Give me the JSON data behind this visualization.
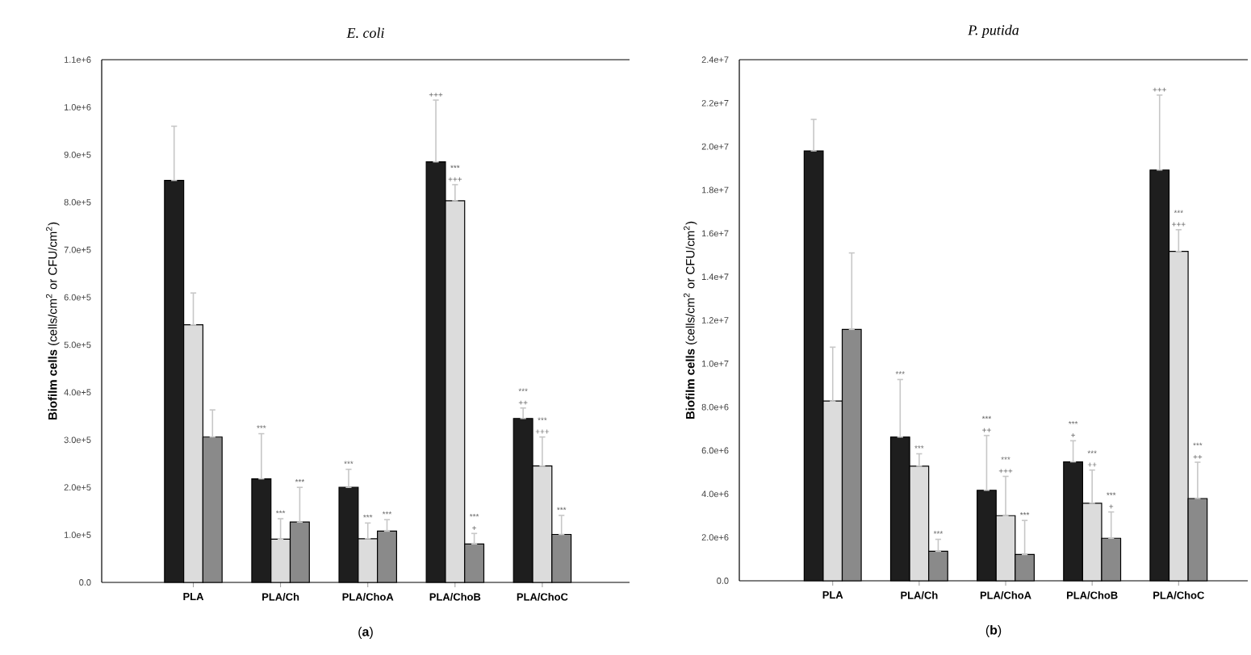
{
  "chart_data": [
    {
      "type": "bar",
      "title": "E. coli",
      "ylabel": "**Biofilm cells** (cells/cm$^{2}$ or CFU/cm$^{2}$)",
      "categories": [
        "PLA",
        "PLA/Ch",
        "PLA/ChoA",
        "PLA/ChoB",
        "PLA/ChoC"
      ],
      "series": [
        {
          "color": "#1e1e1e",
          "values": [
            846000,
            218000,
            200000,
            885000,
            345000
          ],
          "errors": [
            [
              846000,
              960000
            ],
            [
              218000,
              313000
            ],
            [
              200000,
              238000
            ],
            [
              885000,
              1015000
            ],
            [
              345000,
              367000
            ]
          ]
        },
        {
          "color": "#dcdcdc",
          "values": [
            542000,
            91000,
            92000,
            803000,
            245000
          ],
          "errors": [
            [
              542000,
              609000
            ],
            [
              91000,
              134000
            ],
            [
              92000,
              125000
            ],
            [
              803000,
              837000
            ],
            [
              245000,
              306000
            ]
          ]
        },
        {
          "color": "#8a8a8a",
          "values": [
            306000,
            127000,
            108000,
            81000,
            101000
          ],
          "errors": [
            [
              306000,
              363000
            ],
            [
              127000,
              200000
            ],
            [
              108000,
              132000
            ],
            [
              81000,
              103000
            ],
            [
              101000,
              141000
            ]
          ]
        }
      ],
      "ylim": [
        0,
        1100000
      ],
      "yticks": [
        {
          "value": 0,
          "label": "0.0"
        },
        {
          "value": 100000,
          "label": "1.0e+5"
        },
        {
          "value": 200000,
          "label": "2.0e+5"
        },
        {
          "value": 300000,
          "label": "3.0e+5"
        },
        {
          "value": 400000,
          "label": "4.0e+5"
        },
        {
          "value": 500000,
          "label": "5.0e+5"
        },
        {
          "value": 600000,
          "label": "6.0e+5"
        },
        {
          "value": 700000,
          "label": "7.0e+5"
        },
        {
          "value": 800000,
          "label": "8.0e+5"
        },
        {
          "value": 900000,
          "label": "9.0e+5"
        },
        {
          "value": 1000000,
          "label": "1.0e+6"
        },
        {
          "value": 1100000,
          "label": "1.1e+6"
        }
      ],
      "annotations": [
        "***",
        "***",
        "***",
        "***",
        "***",
        "***",
        "+++",
        "***",
        "+++",
        "***",
        "+",
        "***",
        "++",
        "***",
        "+++",
        "***",
        "(**a**)"
      ]
    },
    {
      "type": "bar",
      "title": "P. putida",
      "ylabel": "**Biofilm cells** (cells/cm$^{2}$ or CFU/cm$^{2}$)",
      "categories": [
        "PLA",
        "PLA/Ch",
        "PLA/ChoA",
        "PLA/ChoB",
        "PLA/ChoC"
      ],
      "series": [
        {
          "color": "#1e1e1e",
          "values": [
            19800000,
            6620000,
            4170000,
            5480000,
            18920000
          ],
          "errors": [
            [
              19800000,
              21250000
            ],
            [
              6620000,
              9270000
            ],
            [
              4170000,
              6690000
            ],
            [
              5480000,
              6450000
            ],
            [
              18920000,
              22370000
            ]
          ]
        },
        {
          "color": "#dcdcdc",
          "values": [
            8280000,
            5280000,
            3000000,
            3570000,
            15170000
          ],
          "errors": [
            [
              8280000,
              10760000
            ],
            [
              5280000,
              5850000
            ],
            [
              3000000,
              4810000
            ],
            [
              3570000,
              5100000
            ],
            [
              15170000,
              16170000
            ]
          ]
        },
        {
          "color": "#8a8a8a",
          "values": [
            11580000,
            1360000,
            1210000,
            1960000,
            3790000
          ],
          "errors": [
            [
              11580000,
              15100000
            ],
            [
              1360000,
              1910000
            ],
            [
              1210000,
              2780000
            ],
            [
              1960000,
              3170000
            ],
            [
              3790000,
              5460000
            ]
          ]
        }
      ],
      "ylim": [
        0,
        24000000
      ],
      "yticks": [
        {
          "value": 0,
          "label": "0.0"
        },
        {
          "value": 2000000,
          "label": "2.0e+6"
        },
        {
          "value": 4000000,
          "label": "4.0e+6"
        },
        {
          "value": 6000000,
          "label": "6.0e+6"
        },
        {
          "value": 8000000,
          "label": "8.0e+6"
        },
        {
          "value": 10000000,
          "label": "1.0e+7"
        },
        {
          "value": 12000000,
          "label": "1.2e+7"
        },
        {
          "value": 14000000,
          "label": "1.4e+7"
        },
        {
          "value": 16000000,
          "label": "1.6e+7"
        },
        {
          "value": 18000000,
          "label": "1.8e+7"
        },
        {
          "value": 20000000,
          "label": "2.0e+7"
        },
        {
          "value": 22000000,
          "label": "2.2e+7"
        },
        {
          "value": 24000000,
          "label": "2.4e+7"
        }
      ],
      "annotations": [
        "***",
        "***",
        "***",
        "***",
        "++",
        "***",
        "+++",
        "***",
        "***",
        "+",
        "***",
        "++",
        "***",
        "+",
        "+++",
        "***",
        "+++",
        "***",
        "++",
        "(**b**)"
      ]
    }
  ]
}
